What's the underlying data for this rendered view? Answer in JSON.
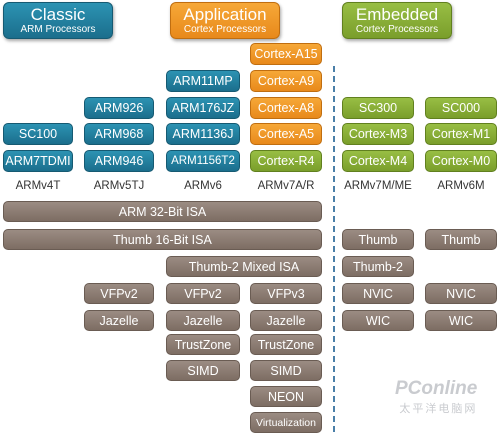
{
  "headers": {
    "classic": {
      "title": "Classic",
      "subtitle": "ARM Processors"
    },
    "application": {
      "title": "Application",
      "subtitle": "Cortex Processors"
    },
    "embedded": {
      "title": "Embedded",
      "subtitle": "Cortex Processors"
    }
  },
  "processors": {
    "v4t": [
      "SC100",
      "ARM7TDMI"
    ],
    "v5tj": [
      "ARM926",
      "ARM968",
      "ARM946"
    ],
    "v6": [
      "ARM11MP",
      "ARM176JZ",
      "ARM1136J",
      "ARM1156T2"
    ],
    "v7ar": [
      "Cortex-A15",
      "Cortex-A9",
      "Cortex-A8",
      "Cortex-A5",
      "Cortex-R4"
    ],
    "v7m": [
      "SC300",
      "Cortex-M3",
      "Cortex-M4"
    ],
    "v6m": [
      "SC000",
      "Cortex-M1",
      "Cortex-M0"
    ]
  },
  "architectures": [
    "ARMv4T",
    "ARMv5TJ",
    "ARMv6",
    "ARMv7A/R",
    "ARMv7M/ME",
    "ARMv6M"
  ],
  "features": {
    "arm32": "ARM 32-Bit ISA",
    "thumb16": "Thumb 16-Bit ISA",
    "thumb_m": "Thumb",
    "thumb_m0": "Thumb",
    "thumb2": "Thumb-2 Mixed ISA",
    "thumb2_m": "Thumb-2",
    "vfpv2_a": "VFPv2",
    "vfpv2_b": "VFPv2",
    "vfpv3": "VFPv3",
    "nvic_m": "NVIC",
    "nvic_m0": "NVIC",
    "jazelle_a": "Jazelle",
    "jazelle_b": "Jazelle",
    "jazelle_c": "Jazelle",
    "wic_m": "WIC",
    "wic_m0": "WIC",
    "trustzone_a": "TrustZone",
    "trustzone_b": "TrustZone",
    "simd_a": "SIMD",
    "simd_b": "SIMD",
    "neon": "NEON",
    "virtualization": "Virtualization"
  },
  "watermark": {
    "brand": "PConline",
    "sub": "太平洋电脑网"
  },
  "colors": {
    "classic": "#1f7a98",
    "application": "#ef9626",
    "embedded": "#88ae36",
    "feature": "#8b7c72",
    "divider": "#4a7fa8"
  }
}
